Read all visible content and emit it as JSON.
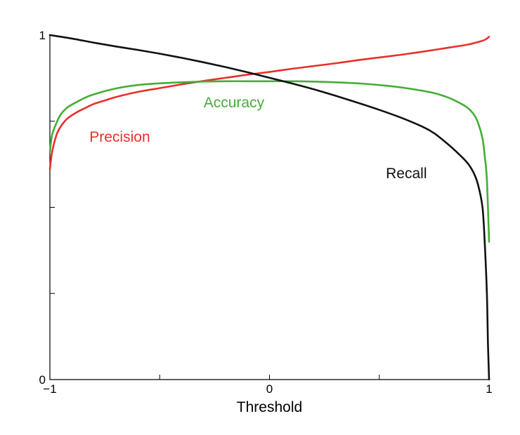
{
  "chart_data": {
    "type": "line",
    "title": "",
    "xlabel": "Threshold",
    "ylabel": "",
    "xlim": [
      -1,
      1
    ],
    "ylim": [
      0,
      1
    ],
    "grid": false,
    "x_ticks": [
      -1,
      -0.5,
      0,
      0.5,
      1
    ],
    "x_tick_labels": [
      "−1",
      "",
      "0",
      "",
      "1"
    ],
    "y_ticks": [
      0,
      0.25,
      0.5,
      0.75,
      1
    ],
    "y_tick_labels": [
      "0",
      "",
      "",
      "",
      "1"
    ],
    "series": [
      {
        "name": "Precision",
        "color": "#e8302a",
        "label_at": [
          -0.82,
          0.69
        ],
        "x": [
          -1.0,
          -0.99,
          -0.97,
          -0.95,
          -0.92,
          -0.88,
          -0.84,
          -0.8,
          -0.75,
          -0.7,
          -0.6,
          -0.5,
          -0.4,
          -0.3,
          -0.2,
          -0.1,
          0.0,
          0.1,
          0.2,
          0.3,
          0.4,
          0.5,
          0.6,
          0.7,
          0.8,
          0.9,
          0.95,
          0.98,
          1.0
        ],
        "values": [
          0.61,
          0.66,
          0.71,
          0.735,
          0.758,
          0.775,
          0.788,
          0.8,
          0.81,
          0.82,
          0.835,
          0.846,
          0.857,
          0.867,
          0.876,
          0.885,
          0.893,
          0.902,
          0.91,
          0.918,
          0.927,
          0.935,
          0.943,
          0.952,
          0.962,
          0.972,
          0.98,
          0.986,
          0.995
        ]
      },
      {
        "name": "Accuracy",
        "color": "#44ad37",
        "label_at": [
          -0.3,
          0.79
        ],
        "x": [
          -1.0,
          -0.99,
          -0.97,
          -0.95,
          -0.92,
          -0.88,
          -0.84,
          -0.8,
          -0.7,
          -0.6,
          -0.5,
          -0.4,
          -0.3,
          -0.2,
          -0.1,
          0.0,
          0.1,
          0.2,
          0.3,
          0.4,
          0.5,
          0.6,
          0.7,
          0.76,
          0.82,
          0.86,
          0.9,
          0.93,
          0.95,
          0.97,
          0.98,
          0.99,
          1.0
        ],
        "values": [
          0.66,
          0.71,
          0.745,
          0.77,
          0.79,
          0.805,
          0.818,
          0.828,
          0.845,
          0.855,
          0.86,
          0.863,
          0.865,
          0.866,
          0.866,
          0.866,
          0.866,
          0.865,
          0.863,
          0.86,
          0.855,
          0.848,
          0.838,
          0.83,
          0.817,
          0.805,
          0.79,
          0.77,
          0.745,
          0.7,
          0.65,
          0.58,
          0.4
        ]
      },
      {
        "name": "Recall",
        "color": "#111111",
        "label_at": [
          0.53,
          0.585
        ],
        "x": [
          -1.0,
          -0.9,
          -0.8,
          -0.7,
          -0.6,
          -0.5,
          -0.4,
          -0.3,
          -0.2,
          -0.1,
          0.0,
          0.1,
          0.2,
          0.3,
          0.4,
          0.5,
          0.6,
          0.7,
          0.75,
          0.8,
          0.85,
          0.9,
          0.93,
          0.95,
          0.97,
          0.98,
          0.99,
          0.995,
          1.0
        ],
        "values": [
          1.0,
          0.99,
          0.978,
          0.967,
          0.957,
          0.946,
          0.934,
          0.921,
          0.907,
          0.892,
          0.876,
          0.86,
          0.843,
          0.824,
          0.804,
          0.783,
          0.76,
          0.733,
          0.715,
          0.69,
          0.662,
          0.63,
          0.6,
          0.565,
          0.5,
          0.4,
          0.25,
          0.1,
          0.0
        ]
      }
    ]
  }
}
